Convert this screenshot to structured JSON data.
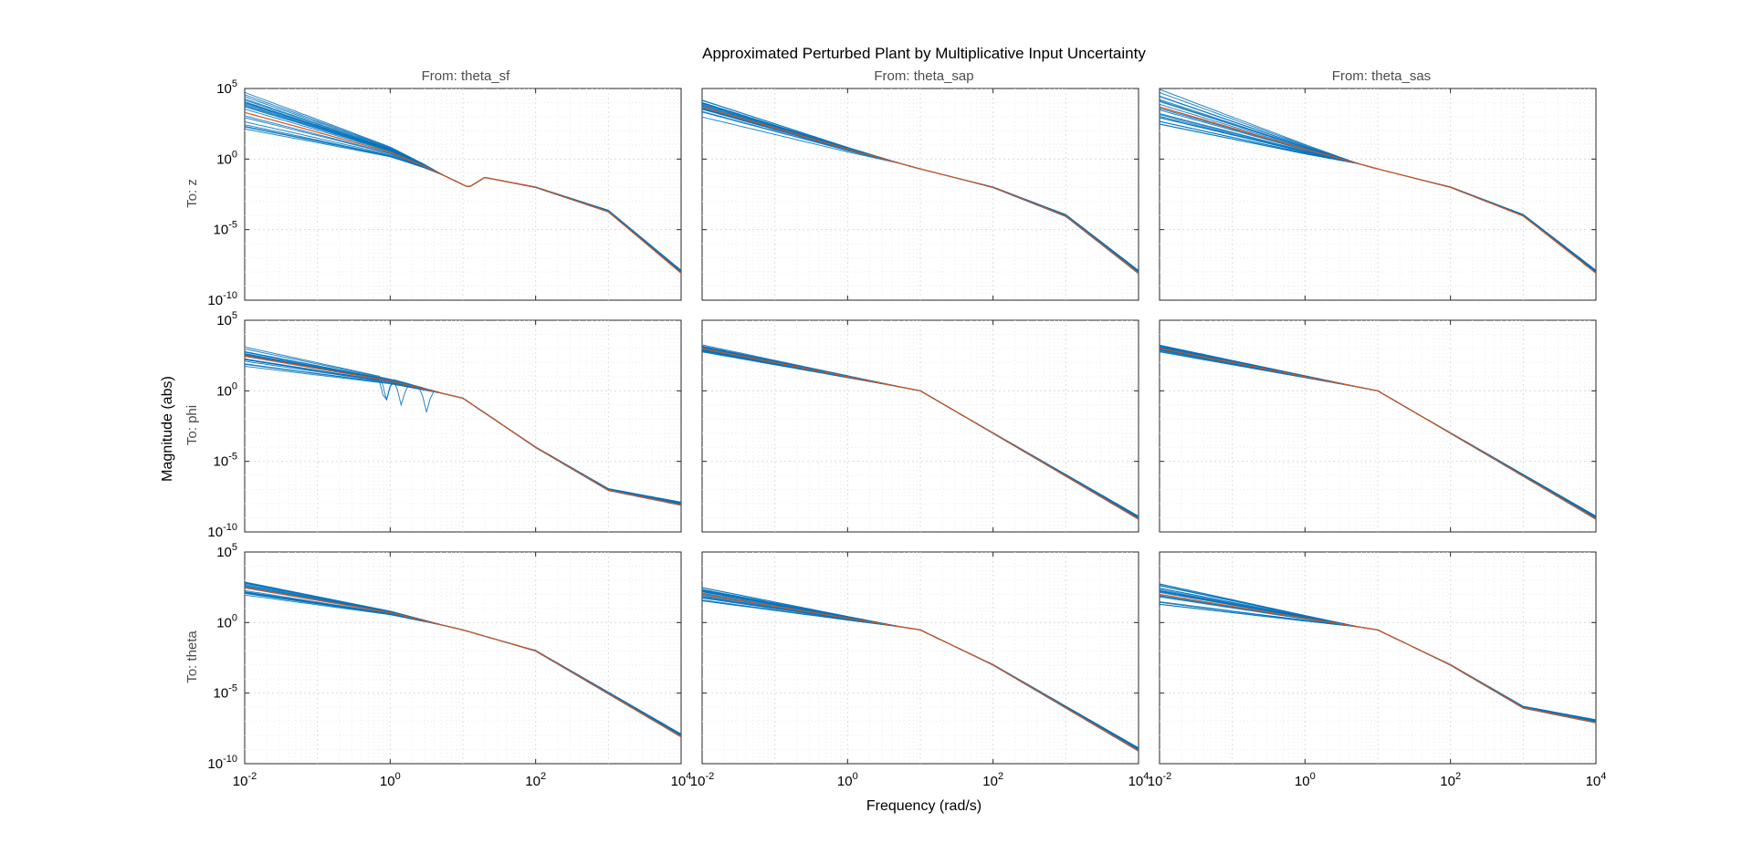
{
  "chart_data": {
    "type": "line",
    "title": "Approximated Perturbed Plant by Multiplicative Input Uncertainty",
    "xlabel": "Frequency  (rad/s)",
    "ylabel": "Magnitude (abs)",
    "xscale": "log",
    "yscale": "log",
    "xlim": [
      0.01,
      10000
    ],
    "ylim": [
      1e-10,
      100000.0
    ],
    "x_ticks": [
      {
        "base": "10",
        "exp": "-2",
        "value": 0.01
      },
      {
        "base": "10",
        "exp": "0",
        "value": 1
      },
      {
        "base": "10",
        "exp": "2",
        "value": 100
      },
      {
        "base": "10",
        "exp": "4",
        "value": 10000
      }
    ],
    "y_ticks": [
      {
        "base": "10",
        "exp": "5",
        "value": 100000
      },
      {
        "base": "10",
        "exp": "0",
        "value": 1
      },
      {
        "base": "10",
        "exp": "-5",
        "value": 1e-05
      },
      {
        "base": "10",
        "exp": "-10",
        "value": 1e-10
      }
    ],
    "grid": true,
    "columns": [
      "From: theta_sf",
      "From: theta_sap",
      "From: theta_sas"
    ],
    "rows": [
      "To: z",
      "To: phi",
      "To: theta"
    ],
    "series_colors": {
      "samples": "#0072bd",
      "nominal": "#d95319"
    },
    "sample_count": 20,
    "panels": [
      {
        "row": 0,
        "col": 0,
        "x": [
          0.01,
          0.1,
          1,
          3,
          12,
          20,
          100,
          1000,
          10000
        ],
        "y_mid": [
          2000,
          80,
          3,
          0.3,
          0.01,
          0.05,
          0.01,
          0.0002,
          1e-08
        ],
        "low_freq_spread_decades": 3
      },
      {
        "row": 0,
        "col": 1,
        "x": [
          0.01,
          1,
          10,
          100,
          1000,
          10000
        ],
        "y_mid": [
          5000,
          5,
          0.2,
          0.01,
          0.0001,
          1e-08
        ],
        "low_freq_spread_decades": 1.5
      },
      {
        "row": 0,
        "col": 2,
        "x": [
          0.01,
          1,
          10,
          100,
          1000,
          10000
        ],
        "y_mid": [
          5000,
          5,
          0.2,
          0.01,
          0.0001,
          1e-08
        ],
        "low_freq_spread_decades": 2.5
      },
      {
        "row": 1,
        "col": 0,
        "x": [
          0.01,
          1,
          10,
          100,
          1000,
          10000
        ],
        "y_mid": [
          300,
          5,
          0.3,
          0.0001,
          1e-07,
          1e-08
        ],
        "low_freq_spread_decades": 1.5
      },
      {
        "row": 1,
        "col": 1,
        "x": [
          0.01,
          1,
          10,
          100,
          1000,
          10000
        ],
        "y_mid": [
          1000,
          10,
          1,
          0.001,
          1e-06,
          1e-09
        ],
        "low_freq_spread_decades": 0.6
      },
      {
        "row": 1,
        "col": 2,
        "x": [
          0.01,
          1,
          10,
          100,
          1000,
          10000
        ],
        "y_mid": [
          1000,
          10,
          1,
          0.001,
          1e-06,
          1e-09
        ],
        "low_freq_spread_decades": 0.5
      },
      {
        "row": 2,
        "col": 0,
        "x": [
          0.01,
          1,
          10,
          100,
          1000,
          10000
        ],
        "y_mid": [
          300,
          5,
          0.3,
          0.01,
          1e-05,
          1e-08
        ],
        "low_freq_spread_decades": 1.2
      },
      {
        "row": 2,
        "col": 1,
        "x": [
          0.01,
          1,
          10,
          100,
          1000,
          10000
        ],
        "y_mid": [
          100,
          2,
          0.3,
          0.001,
          1e-06,
          1e-09
        ],
        "low_freq_spread_decades": 1
      },
      {
        "row": 2,
        "col": 2,
        "x": [
          0.01,
          1,
          10,
          100,
          1000,
          10000
        ],
        "y_mid": [
          100,
          2,
          0.3,
          0.001,
          1e-06,
          1e-07
        ],
        "low_freq_spread_decades": 1.5
      }
    ]
  }
}
